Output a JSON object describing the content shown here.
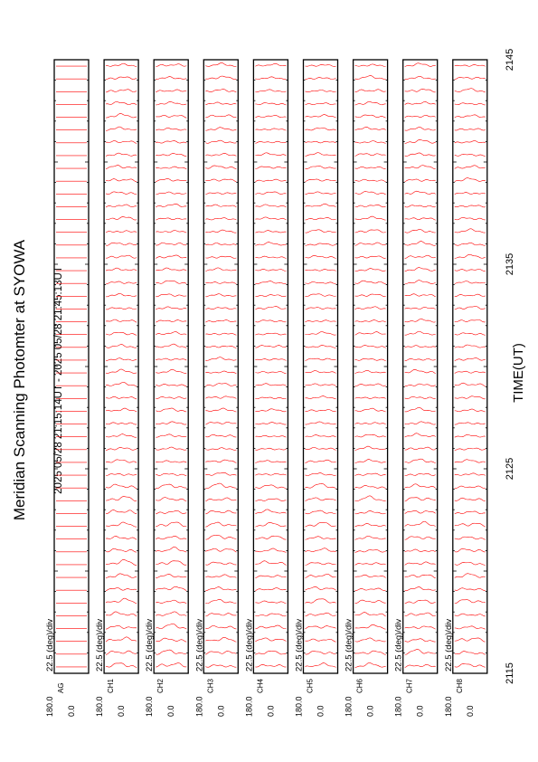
{
  "title": "Meridian Scanning Photomter at SYOWA",
  "time_range": "2025 05/28 21:15:14UT - 2025 05/28 21:45:13UT",
  "chart_data": {
    "type": "line",
    "title": "Meridian Scanning Photomter at SYOWA",
    "subtitle": "2025 05/28 21:15:14UT - 2025 05/28 21:45:13UT",
    "xlabel": "TIME(UT)",
    "x_ticks": [
      "2115",
      "2125",
      "2135",
      "2145"
    ],
    "x_range": [
      "2115",
      "2145"
    ],
    "y_top_label": "180.0",
    "y_bottom_label": "0.0",
    "scale_label": "22.5 (deg)/div",
    "line_color": "#ff0000",
    "traces_per_panel": 48,
    "panels": [
      {
        "channel": "AG",
        "activity": 0.0
      },
      {
        "channel": "CH1",
        "activity": 0.55
      },
      {
        "channel": "CH2",
        "activity": 0.5
      },
      {
        "channel": "CH3",
        "activity": 0.5
      },
      {
        "channel": "CH4",
        "activity": 0.45
      },
      {
        "channel": "CH5",
        "activity": 0.45
      },
      {
        "channel": "CH6",
        "activity": 0.5
      },
      {
        "channel": "CH7",
        "activity": 0.55
      },
      {
        "channel": "CH8",
        "activity": 0.5
      }
    ]
  }
}
